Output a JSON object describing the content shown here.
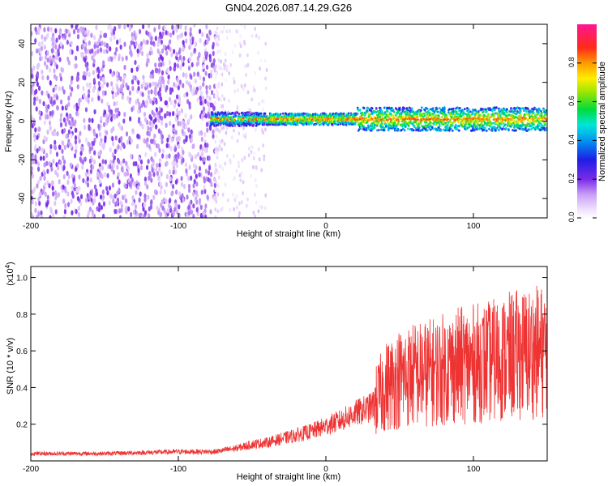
{
  "title": "GN04.2026.087.14.29.G26",
  "chart_data": [
    {
      "type": "heatmap",
      "name": "spectrogram",
      "xlabel": "Height of straight line (km)",
      "ylabel": "Frequency (Hz)",
      "xlim": [
        -200,
        150
      ],
      "ylim": [
        -50,
        50
      ],
      "x_ticks": [
        -200,
        -100,
        0,
        100
      ],
      "x_tick_labels": [
        "-200",
        "-100",
        "0",
        "100"
      ],
      "y_ticks": [
        -40,
        -20,
        0,
        20,
        40
      ],
      "y_tick_labels": [
        "-40",
        "-20",
        "0",
        "20",
        "40"
      ],
      "regions": [
        {
          "description": "diffuse noise, low amplitude",
          "x_range": [
            -200,
            -75
          ],
          "freq_range": [
            -50,
            50
          ],
          "amplitude": [
            0.05,
            0.2
          ]
        },
        {
          "description": "fading noise",
          "x_range": [
            -75,
            -40
          ],
          "freq_range": [
            -50,
            50
          ],
          "amplitude": [
            0.02,
            0.08
          ]
        },
        {
          "description": "signal band",
          "x_range": [
            -78,
            150
          ],
          "center_freq": 1,
          "half_width": 3,
          "peak_amplitude": 0.85
        },
        {
          "description": "wider signal band",
          "x_range": [
            21,
            150
          ],
          "center_freq": 1,
          "half_width": 6,
          "peak_amplitude": 0.85
        }
      ],
      "colorbar": {
        "label": "Normalized spectral amplitude",
        "range": [
          0,
          1
        ],
        "ticks": [
          0.0,
          0.2,
          0.4,
          0.6,
          0.8
        ],
        "tick_labels": [
          "0.0",
          "0.2",
          "0.4",
          "0.6",
          "0.8"
        ]
      }
    },
    {
      "type": "line",
      "name": "snr",
      "xlabel": "Height of straight line (km)",
      "ylabel": "SNR (10 * v/v)",
      "scale_label": "(x10",
      "scale_exponent": "4",
      "xlim": [
        -200,
        150
      ],
      "ylim": [
        0,
        1.06
      ],
      "x_ticks": [
        -200,
        -100,
        0,
        100
      ],
      "x_tick_labels": [
        "-200",
        "-100",
        "0",
        "100"
      ],
      "y_ticks": [
        0.2,
        0.4,
        0.6,
        0.8,
        1.0
      ],
      "y_tick_labels": [
        "0.2",
        "0.4",
        "0.6",
        "0.8",
        "1.0"
      ],
      "color": "#ee3333",
      "series": [
        {
          "name": "SNR",
          "x": [
            -200,
            -150,
            -100,
            -75,
            -60,
            -50,
            -40,
            -30,
            -20,
            -10,
            0,
            10,
            20,
            30,
            33,
            40,
            50,
            60,
            70,
            80,
            90,
            100,
            110,
            120,
            130,
            140,
            150
          ],
          "values": [
            0.04,
            0.04,
            0.05,
            0.05,
            0.07,
            0.09,
            0.1,
            0.12,
            0.14,
            0.16,
            0.19,
            0.22,
            0.26,
            0.29,
            0.31,
            0.4,
            0.45,
            0.47,
            0.48,
            0.5,
            0.52,
            0.53,
            0.54,
            0.56,
            0.58,
            0.59,
            0.6
          ]
        }
      ]
    }
  ]
}
